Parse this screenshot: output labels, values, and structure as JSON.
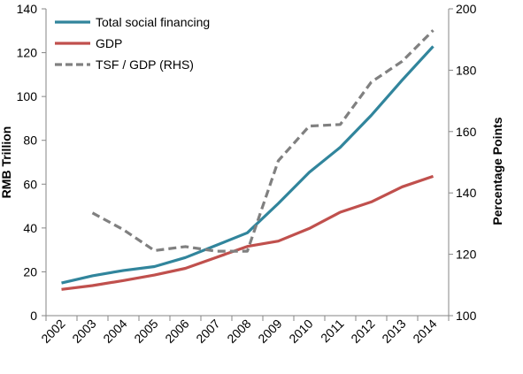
{
  "chart_data": {
    "type": "line",
    "title": "",
    "xlabel": "",
    "ylabel": "RMB Trillion",
    "y2label": "Percentage Points",
    "categories": [
      "2002",
      "2003",
      "2004",
      "2005",
      "2006",
      "2007",
      "2008",
      "2009",
      "2010",
      "2011",
      "2012",
      "2013",
      "2014"
    ],
    "ylim": [
      0,
      140
    ],
    "y2lim": [
      100,
      200
    ],
    "yticks": [
      0,
      20,
      40,
      60,
      80,
      100,
      120,
      140
    ],
    "y2ticks": [
      100,
      120,
      140,
      160,
      180,
      200
    ],
    "grid": false,
    "legend_position": "top-left",
    "series": [
      {
        "name": "Total social financing",
        "axis": "left",
        "color": "#31859c",
        "dash": "solid",
        "values": [
          14.9,
          18.2,
          20.6,
          22.4,
          26.5,
          32.1,
          37.8,
          51.2,
          65.4,
          76.8,
          91.4,
          107.5,
          122.9
        ]
      },
      {
        "name": "GDP",
        "axis": "left",
        "color": "#c0504d",
        "dash": "solid",
        "values": [
          12.0,
          13.7,
          16.0,
          18.5,
          21.6,
          26.6,
          31.6,
          34.0,
          39.8,
          47.2,
          51.9,
          58.8,
          63.6
        ]
      },
      {
        "name": "TSF / GDP (RHS)",
        "axis": "right",
        "color": "#808080",
        "dash": "dashed",
        "values": [
          null,
          133.5,
          128.0,
          121.2,
          122.5,
          121.0,
          121.0,
          150.5,
          161.8,
          162.3,
          176.1,
          182.9,
          193.0
        ]
      }
    ]
  }
}
